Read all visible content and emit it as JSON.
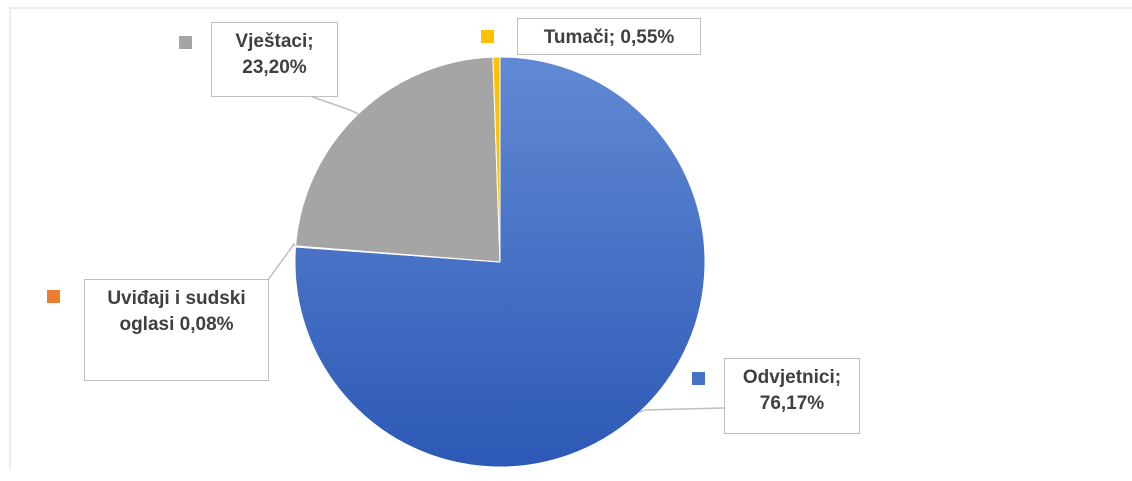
{
  "chart_data": {
    "type": "pie",
    "values": [
      76.17,
      0.08,
      23.2,
      0.55
    ],
    "value_labels": [
      "Odvjetnici; 76,17%",
      "Uviđaji i sudski oglasi 0,08%",
      "Vještaci; 23,20%",
      "Tumači; 0,55%"
    ],
    "colors": [
      "#4472c4",
      "#ed7d31",
      "#a5a5a5",
      "#ffc000"
    ]
  }
}
